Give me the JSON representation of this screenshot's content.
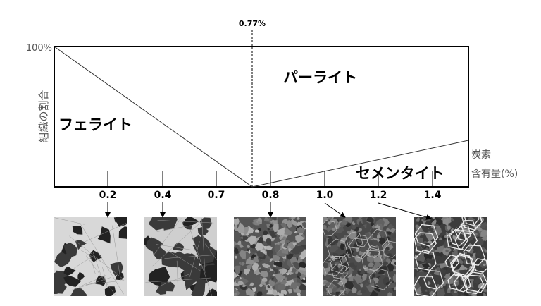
{
  "diagram": {
    "eutectoid_label": "0.77%",
    "y_max_label": "100%",
    "y_axis_label": "組織の割合",
    "x_axis_label_line1": "炭素",
    "x_axis_label_line2": "含有量(%)",
    "regions": {
      "ferrite": "フェライト",
      "pearlite": "パーライト",
      "cementite": "セメンタイト"
    },
    "x_ticks": [
      "0.2",
      "0.4",
      "0.7",
      "0.8",
      "1.0",
      "1.2",
      "1.4"
    ],
    "micrographs": [
      {
        "carbon": "0.2",
        "style": "ferrite-dominant"
      },
      {
        "carbon": "0.4",
        "style": "ferrite-pearlite"
      },
      {
        "carbon": "0.8",
        "style": "pearlite"
      },
      {
        "carbon": "1.0",
        "style": "pearlite-cementite"
      },
      {
        "carbon": "1.2",
        "style": "cementite-network"
      }
    ],
    "colors": {
      "line": "#000000",
      "axis_text": "#555555"
    }
  }
}
